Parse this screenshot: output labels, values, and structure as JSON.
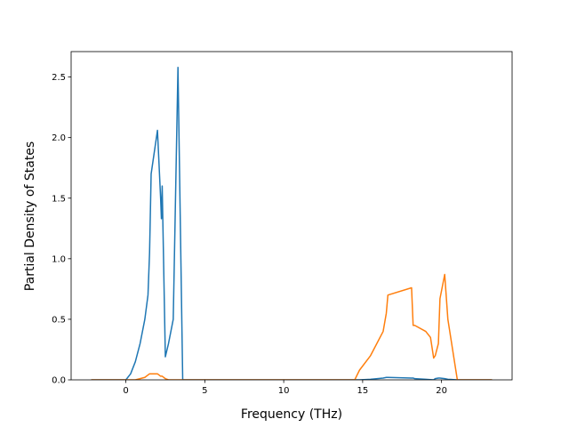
{
  "chart_data": {
    "type": "line",
    "xlabel": "Frequency (THz)",
    "ylabel": "Partial Density of States",
    "x": [
      -2.2,
      0,
      0.3,
      0.6,
      0.9,
      1.2,
      1.4,
      1.5,
      1.6,
      2.0,
      2.2,
      2.25,
      2.3,
      2.5,
      2.7,
      3.0,
      3.3,
      3.6,
      3.65,
      5,
      10,
      14.5,
      14.8,
      15.5,
      16.3,
      16.5,
      16.6,
      18.1,
      18.2,
      18.3,
      19.0,
      19.3,
      19.5,
      19.6,
      19.8,
      19.9,
      20.2,
      20.4,
      21.0,
      23.2
    ],
    "series": [
      {
        "color": "#1f77b4",
        "values": [
          0,
          0,
          0.05,
          0.15,
          0.3,
          0.5,
          0.7,
          1.05,
          1.7,
          2.06,
          1.5,
          1.33,
          1.6,
          0.19,
          0.3,
          0.5,
          2.58,
          0,
          0,
          0,
          0,
          0,
          0,
          0.005,
          0.015,
          0.02,
          0.02,
          0.015,
          0.015,
          0.01,
          0.005,
          0.002,
          0,
          0.01,
          0.015,
          0.015,
          0.01,
          0.005,
          0,
          0
        ]
      },
      {
        "color": "#ff7f0e",
        "values": [
          0,
          0,
          0,
          0,
          0.01,
          0.02,
          0.04,
          0.05,
          0.05,
          0.05,
          0.03,
          0.03,
          0.03,
          0.01,
          0,
          0,
          0,
          0,
          0,
          0,
          0,
          0,
          0.08,
          0.2,
          0.4,
          0.55,
          0.7,
          0.76,
          0.45,
          0.45,
          0.4,
          0.35,
          0.18,
          0.2,
          0.3,
          0.67,
          0.87,
          0.5,
          0,
          0
        ]
      }
    ],
    "xlim": [
      -3.47,
      24.47
    ],
    "xticks": [
      0,
      5,
      10,
      15,
      20
    ],
    "ylim": [
      0,
      2.71
    ],
    "yticks": [
      {
        "value": 0,
        "label": "0.0"
      },
      0.5,
      {
        "value": 1,
        "label": "1.0"
      },
      1.5,
      {
        "value": 2,
        "label": "2.0"
      },
      2.5
    ]
  }
}
